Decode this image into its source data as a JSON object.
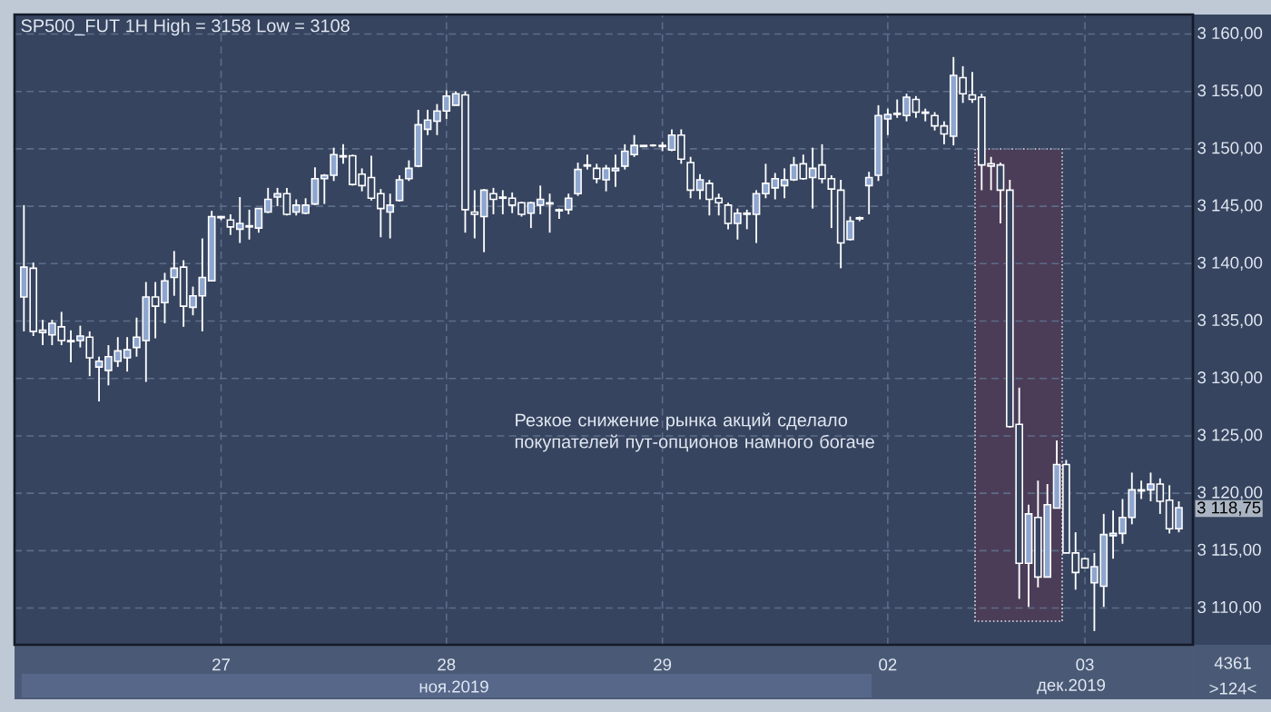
{
  "chart_data": {
    "type": "candlestick",
    "title": "SP500_FUT 1H High = 3158 Low = 3108",
    "categories": [
      null,
      null,
      null,
      null,
      null,
      null,
      null,
      null,
      null,
      null,
      null,
      null,
      null,
      null,
      null,
      null,
      null,
      null,
      null,
      null,
      null,
      "27",
      null,
      null,
      null,
      null,
      null,
      null,
      null,
      null,
      null,
      null,
      null,
      null,
      null,
      null,
      null,
      null,
      null,
      null,
      null,
      null,
      null,
      null,
      null,
      "28",
      null,
      null,
      null,
      null,
      null,
      null,
      null,
      null,
      null,
      null,
      null,
      null,
      null,
      null,
      null,
      null,
      null,
      null,
      null,
      null,
      null,
      null,
      "29",
      null,
      null,
      null,
      null,
      null,
      null,
      null,
      null,
      null,
      null,
      null,
      null,
      null,
      null,
      null,
      null,
      null,
      null,
      null,
      null,
      null,
      null,
      null,
      "02",
      null,
      null,
      null,
      null,
      null,
      null,
      null,
      null,
      null,
      null,
      null,
      null,
      null,
      null,
      null,
      null,
      null,
      null,
      null,
      null,
      "03",
      null,
      null,
      null,
      null,
      null,
      null,
      null,
      null,
      null,
      null
    ],
    "ohlc": [
      [
        3137.1,
        3145.1,
        3134.1,
        3139.7
      ],
      [
        3139.6,
        3140.1,
        3133.7,
        3134.1
      ],
      [
        3134.2,
        3135.1,
        3132.9,
        3134.0
      ],
      [
        3133.8,
        3135.1,
        3132.9,
        3134.8
      ],
      [
        3134.5,
        3135.8,
        3132.9,
        3133.3
      ],
      [
        3133.3,
        3134.2,
        3131.4,
        3133.2
      ],
      [
        3133.3,
        3134.6,
        3132.7,
        3133.7
      ],
      [
        3133.6,
        3134.1,
        3130.2,
        3131.8
      ],
      [
        3131.0,
        3131.9,
        3128.0,
        3131.5
      ],
      [
        3130.7,
        3132.9,
        3129.4,
        3131.9
      ],
      [
        3131.5,
        3133.6,
        3131.0,
        3132.4
      ],
      [
        3131.8,
        3133.6,
        3130.6,
        3132.5
      ],
      [
        3132.7,
        3135.3,
        3131.9,
        3133.6
      ],
      [
        3133.3,
        3138.4,
        3129.7,
        3137.1
      ],
      [
        3137.1,
        3138.4,
        3133.5,
        3136.3
      ],
      [
        3136.6,
        3139.2,
        3134.8,
        3138.5
      ],
      [
        3138.8,
        3141.1,
        3137.2,
        3139.6
      ],
      [
        3139.7,
        3140.3,
        3134.5,
        3136.3
      ],
      [
        3136.2,
        3138.0,
        3135.5,
        3137.2
      ],
      [
        3137.2,
        3142.2,
        3134.1,
        3138.8
      ],
      [
        3138.5,
        3144.6,
        3138.5,
        3144.1
      ],
      [
        3144.1,
        3144.1,
        3143.8,
        3144.0
      ],
      [
        3143.8,
        3144.3,
        3142.5,
        3143.2
      ],
      [
        3143.0,
        3145.8,
        3141.8,
        3143.5
      ],
      [
        3143.3,
        3144.7,
        3142.1,
        3143.2
      ],
      [
        3143.1,
        3144.8,
        3142.7,
        3144.8
      ],
      [
        3144.5,
        3146.6,
        3144.4,
        3145.6
      ],
      [
        3145.8,
        3146.6,
        3145.0,
        3146.1
      ],
      [
        3146.1,
        3146.6,
        3144.2,
        3144.3
      ],
      [
        3144.5,
        3145.6,
        3144.2,
        3145.1
      ],
      [
        3144.4,
        3145.7,
        3144.3,
        3145.1
      ],
      [
        3145.2,
        3148.4,
        3145.1,
        3147.4
      ],
      [
        3147.4,
        3147.8,
        3145.2,
        3147.7
      ],
      [
        3147.7,
        3150.1,
        3147.2,
        3149.5
      ],
      [
        3149.4,
        3150.4,
        3148.7,
        3149.3
      ],
      [
        3149.4,
        3149.5,
        3146.8,
        3146.9
      ],
      [
        3147.8,
        3148.3,
        3146.3,
        3146.8
      ],
      [
        3147.5,
        3149.4,
        3145.5,
        3145.7
      ],
      [
        3146.1,
        3146.5,
        3142.3,
        3144.8
      ],
      [
        3144.5,
        3146.1,
        3142.2,
        3145.1
      ],
      [
        3145.5,
        3147.7,
        3145.4,
        3147.3
      ],
      [
        3147.4,
        3149.0,
        3147.2,
        3148.3
      ],
      [
        3148.5,
        3153.4,
        3148.4,
        3152.1
      ],
      [
        3151.7,
        3153.4,
        3151.2,
        3152.5
      ],
      [
        3152.4,
        3153.9,
        3151.2,
        3153.3
      ],
      [
        3153.3,
        3155.1,
        3152.6,
        3154.6
      ],
      [
        3153.8,
        3155.0,
        3153.8,
        3154.8
      ],
      [
        3154.7,
        3155.0,
        3142.7,
        3144.7
      ],
      [
        3144.5,
        3146.4,
        3142.2,
        3144.3
      ],
      [
        3144.1,
        3146.5,
        3141.0,
        3146.4
      ],
      [
        3146.1,
        3146.6,
        3144.3,
        3145.6
      ],
      [
        3145.8,
        3146.4,
        3144.3,
        3145.7
      ],
      [
        3145.7,
        3146.2,
        3144.4,
        3145.1
      ],
      [
        3145.3,
        3145.4,
        3144.1,
        3144.3
      ],
      [
        3144.4,
        3145.4,
        3143.1,
        3145.3
      ],
      [
        3145.1,
        3146.8,
        3144.3,
        3145.6
      ],
      [
        3145.3,
        3146.1,
        3142.7,
        3145.2
      ],
      [
        3144.7,
        3144.8,
        3143.9,
        3144.6
      ],
      [
        3144.7,
        3146.1,
        3144.3,
        3145.7
      ],
      [
        3146.1,
        3148.8,
        3145.9,
        3148.2
      ],
      [
        3148.6,
        3149.5,
        3148.2,
        3148.5
      ],
      [
        3148.3,
        3148.7,
        3147.0,
        3147.4
      ],
      [
        3147.3,
        3148.6,
        3146.3,
        3148.3
      ],
      [
        3148.1,
        3149.5,
        3146.7,
        3148.3
      ],
      [
        3148.5,
        3150.4,
        3148.2,
        3149.8
      ],
      [
        3149.5,
        3151.2,
        3149.3,
        3150.3
      ],
      [
        3150.3,
        3150.3,
        3150.2,
        3150.2
      ],
      [
        3150.3,
        3150.4,
        3150.2,
        3150.3
      ],
      [
        3150.2,
        3150.6,
        3149.8,
        3150.3
      ],
      [
        3149.9,
        3151.7,
        3149.8,
        3151.2
      ],
      [
        3151.2,
        3151.7,
        3148.7,
        3149.1
      ],
      [
        3148.8,
        3149.3,
        3145.7,
        3146.4
      ],
      [
        3146.4,
        3147.8,
        3145.6,
        3147.3
      ],
      [
        3147.0,
        3147.3,
        3144.2,
        3145.6
      ],
      [
        3145.7,
        3146.1,
        3144.2,
        3145.3
      ],
      [
        3145.1,
        3145.3,
        3143.0,
        3143.5
      ],
      [
        3143.5,
        3144.8,
        3142.1,
        3144.4
      ],
      [
        3144.3,
        3144.7,
        3143.0,
        3144.4
      ],
      [
        3144.3,
        3146.4,
        3141.8,
        3146.1
      ],
      [
        3146.1,
        3148.7,
        3145.7,
        3147.0
      ],
      [
        3146.6,
        3147.9,
        3145.6,
        3147.4
      ],
      [
        3146.8,
        3148.3,
        3145.7,
        3147.3
      ],
      [
        3147.3,
        3149.3,
        3147.2,
        3148.6
      ],
      [
        3148.7,
        3149.5,
        3147.3,
        3147.4
      ],
      [
        3147.5,
        3150.1,
        3144.8,
        3148.3
      ],
      [
        3148.6,
        3150.4,
        3147.0,
        3147.4
      ],
      [
        3147.4,
        3147.7,
        3143.1,
        3146.5
      ],
      [
        3146.4,
        3147.3,
        3139.6,
        3141.8
      ],
      [
        3142.1,
        3144.1,
        3142.0,
        3143.7
      ],
      [
        3144.0,
        3144.1,
        3143.7,
        3143.9
      ],
      [
        3146.8,
        3148.0,
        3144.3,
        3147.5
      ],
      [
        3147.7,
        3153.8,
        3147.2,
        3152.9
      ],
      [
        3152.6,
        3153.5,
        3151.2,
        3153.0
      ],
      [
        3153.0,
        3154.3,
        3152.7,
        3153.1
      ],
      [
        3152.9,
        3154.8,
        3152.4,
        3154.5
      ],
      [
        3154.3,
        3154.6,
        3152.7,
        3153.2
      ],
      [
        3153.2,
        3153.5,
        3152.4,
        3153.1
      ],
      [
        3152.9,
        3153.2,
        3151.6,
        3152.0
      ],
      [
        3152.0,
        3152.4,
        3150.4,
        3151.3
      ],
      [
        3151.1,
        3158.0,
        3150.3,
        3156.4
      ],
      [
        3156.2,
        3157.2,
        3154.0,
        3154.8
      ],
      [
        3154.7,
        3156.7,
        3154.0,
        3154.3
      ],
      [
        3154.5,
        3154.8,
        3146.4,
        3148.6
      ],
      [
        3148.7,
        3149.3,
        3146.4,
        3148.5
      ],
      [
        3148.6,
        3148.8,
        3143.5,
        3146.4
      ],
      [
        3146.4,
        3147.3,
        3125.7,
        3125.8
      ],
      [
        3126.0,
        3129.2,
        3110.8,
        3113.9
      ],
      [
        3113.9,
        3119.0,
        3110.1,
        3118.2
      ],
      [
        3117.9,
        3121.1,
        3111.8,
        3112.7
      ],
      [
        3112.7,
        3120.8,
        3112.7,
        3119.0
      ],
      [
        3118.7,
        3124.6,
        3118.7,
        3122.5
      ],
      [
        3122.5,
        3122.9,
        3114.8,
        3114.8
      ],
      [
        3114.8,
        3116.6,
        3111.6,
        3113.1
      ],
      [
        3114.3,
        3114.4,
        3113.5,
        3113.5
      ],
      [
        3112.2,
        3114.8,
        3108.0,
        3113.6
      ],
      [
        3111.9,
        3118.2,
        3110.1,
        3116.4
      ],
      [
        3116.3,
        3118.5,
        3114.3,
        3116.5
      ],
      [
        3116.5,
        3119.5,
        3115.6,
        3117.9
      ],
      [
        3117.9,
        3121.8,
        3117.3,
        3120.3
      ],
      [
        3120.2,
        3121.1,
        3119.5,
        3120.3
      ],
      [
        3120.3,
        3121.8,
        3119.3,
        3120.8
      ],
      [
        3120.8,
        3121.3,
        3118.2,
        3119.3
      ],
      [
        3119.4,
        3120.7,
        3116.5,
        3116.9
      ],
      [
        3116.9,
        3119.3,
        3116.6,
        3118.75
      ]
    ],
    "ylim": [
      3106.8,
      3161.7
    ],
    "yticks": [
      {
        "value": 3110,
        "label": "3 110,00"
      },
      {
        "value": 3115,
        "label": "3 115,00"
      },
      {
        "value": 3120,
        "label": "3 120,00"
      },
      {
        "value": 3125,
        "label": "3 125,00"
      },
      {
        "value": 3130,
        "label": "3 130,00"
      },
      {
        "value": 3135,
        "label": "3 135,00"
      },
      {
        "value": 3140,
        "label": "3 140,00"
      },
      {
        "value": 3145,
        "label": "3 145,00"
      },
      {
        "value": 3150,
        "label": "3 150,00"
      },
      {
        "value": 3155,
        "label": "3 155,00"
      },
      {
        "value": 3160,
        "label": "3 160,00"
      }
    ],
    "grid": true,
    "annotations": [
      "Резкое снижение рынка акций сделало покупателей пут-опционов намного богаче",
      "ноя.2019",
      "дек.2019",
      "4361",
      ">124<",
      "3 118,75"
    ]
  }
}
